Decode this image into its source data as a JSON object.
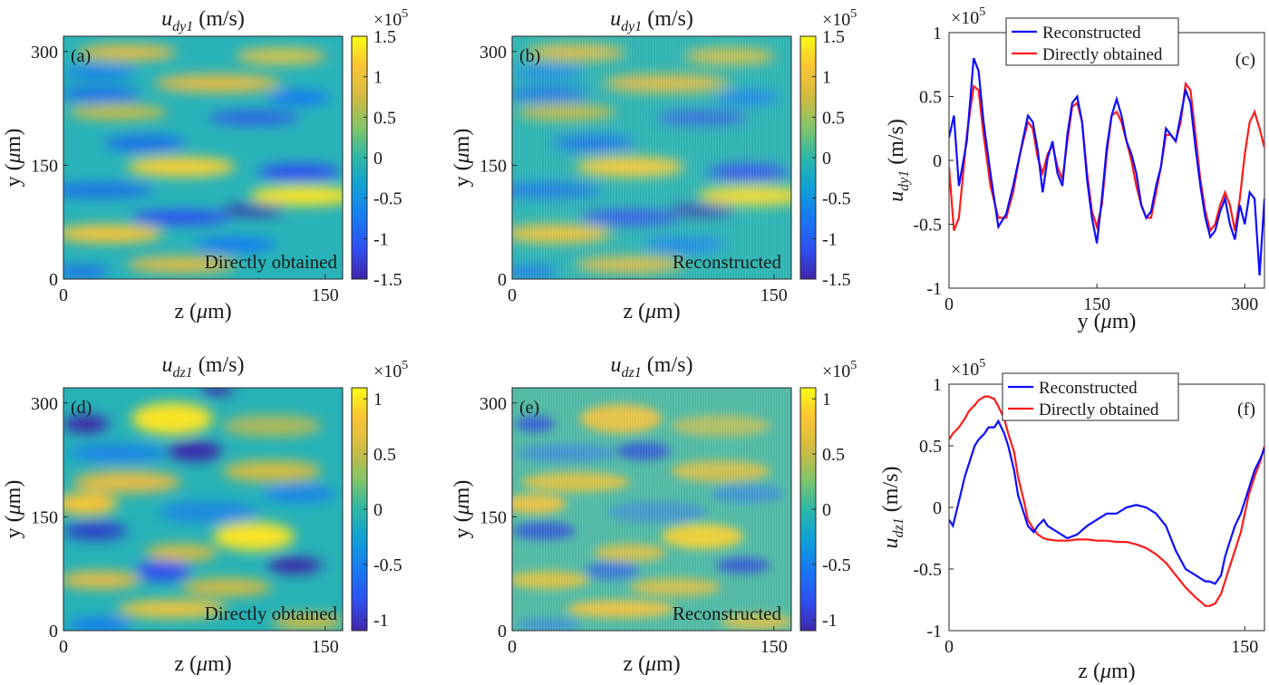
{
  "colors": {
    "blue": "#0d0dff",
    "red": "#ff1a1a",
    "colormap": "parula"
  },
  "heatmaps": [
    {
      "id": "a",
      "tag": "(a)",
      "title_main": "u",
      "title_sub": "dy1",
      "title_unit": "(m/s)",
      "overlay": "Directly obtained",
      "cb_exp_base": "×10",
      "cb_exp_pow": "5",
      "cb_ticks": [
        "1.5",
        "1",
        "0.5",
        "0",
        "-0.5",
        "-1",
        "-1.5"
      ],
      "x_ticks": [
        "0",
        "150"
      ],
      "y_ticks": [
        "300",
        "150",
        "0"
      ],
      "xlabel_pre": "z (",
      "xlabel_mu": "μ",
      "xlabel_post": "m)",
      "ylabel_pre": "y (",
      "ylabel_mu": "μ",
      "ylabel_post": "m)"
    },
    {
      "id": "b",
      "tag": "(b)",
      "title_main": "u",
      "title_sub": "dy1",
      "title_unit": "(m/s)",
      "overlay": "Reconstructed",
      "cb_exp_base": "×10",
      "cb_exp_pow": "5",
      "cb_ticks": [
        "1.5",
        "1",
        "0.5",
        "0",
        "-0.5",
        "-1",
        "-1.5"
      ],
      "x_ticks": [
        "0",
        "150"
      ],
      "y_ticks": [
        "300",
        "150",
        "0"
      ],
      "xlabel_pre": "z (",
      "xlabel_mu": "μ",
      "xlabel_post": "m)",
      "ylabel_pre": "y (",
      "ylabel_mu": "μ",
      "ylabel_post": "m)"
    },
    {
      "id": "d",
      "tag": "(d)",
      "title_main": "u",
      "title_sub": "dz1",
      "title_unit": "(m/s)",
      "overlay": "Directly obtained",
      "cb_exp_base": "×10",
      "cb_exp_pow": "5",
      "cb_ticks": [
        "1",
        "0.5",
        "0",
        "-0.5",
        "-1"
      ],
      "x_ticks": [
        "0",
        "150"
      ],
      "y_ticks": [
        "300",
        "150",
        "0"
      ],
      "xlabel_pre": "z (",
      "xlabel_mu": "μ",
      "xlabel_post": "m)",
      "ylabel_pre": "y (",
      "ylabel_mu": "μ",
      "ylabel_post": "m)"
    },
    {
      "id": "e",
      "tag": "(e)",
      "title_main": "u",
      "title_sub": "dz1",
      "title_unit": "(m/s)",
      "overlay": "Reconstructed",
      "cb_exp_base": "×10",
      "cb_exp_pow": "5",
      "cb_ticks": [
        "1",
        "0.5",
        "0",
        "-0.5",
        "-1"
      ],
      "x_ticks": [
        "0",
        "150"
      ],
      "y_ticks": [
        "300",
        "150",
        "0"
      ],
      "xlabel_pre": "z (",
      "xlabel_mu": "μ",
      "xlabel_post": "m)",
      "ylabel_pre": "y (",
      "ylabel_mu": "μ",
      "ylabel_post": "m)"
    }
  ],
  "lineplots": [
    {
      "id": "c",
      "tag": "(c)",
      "exp_base": "×10",
      "exp_pow": "5",
      "y_ticks": [
        "1",
        "0.5",
        "0",
        "-0.5",
        "-1"
      ],
      "x_ticks": [
        "0",
        "150",
        "300"
      ],
      "xlabel_pre": "y (",
      "xlabel_mu": "μ",
      "xlabel_post": "m)",
      "ylabel_main": "u",
      "ylabel_sub": "dy1",
      "ylabel_unit": " (m/s)",
      "legend": [
        "Reconstructed",
        "Directly obtained"
      ]
    },
    {
      "id": "f",
      "tag": "(f)",
      "exp_base": "×10",
      "exp_pow": "5",
      "y_ticks": [
        "1",
        "0.5",
        "0",
        "-0.5",
        "-1"
      ],
      "x_ticks": [
        "0",
        "150"
      ],
      "xlabel_pre": "z (",
      "xlabel_mu": "μ",
      "xlabel_post": "m)",
      "ylabel_main": "u",
      "ylabel_sub": "dz1",
      "ylabel_unit": " (m/s)",
      "legend": [
        "Reconstructed",
        "Directly obtained"
      ]
    }
  ],
  "chart_data": [
    {
      "type": "heatmap",
      "panel": "(a)",
      "title": "u_dy1 (m/s)",
      "xlabel": "z (μm)",
      "ylabel": "y (μm)",
      "xlim": [
        0,
        160
      ],
      "ylim": [
        0,
        320
      ],
      "clim": [
        -150000,
        150000
      ],
      "colormap": "parula",
      "colorbar_ticks": [
        -1.5,
        -1,
        -0.5,
        0,
        0.5,
        1,
        1.5
      ],
      "colorbar_scale": "×10^5"
    },
    {
      "type": "heatmap",
      "panel": "(b)",
      "title": "u_dy1 (m/s)",
      "xlabel": "z (μm)",
      "ylabel": "y (μm)",
      "xlim": [
        0,
        160
      ],
      "ylim": [
        0,
        320
      ],
      "clim": [
        -150000,
        150000
      ],
      "colormap": "parula",
      "colorbar_ticks": [
        -1.5,
        -1,
        -0.5,
        0,
        0.5,
        1,
        1.5
      ],
      "colorbar_scale": "×10^5"
    },
    {
      "type": "line",
      "panel": "(c)",
      "xlabel": "y (μm)",
      "ylabel": "u_dy1 (m/s)",
      "xlim": [
        0,
        320
      ],
      "ylim": [
        -1,
        1
      ],
      "y_scale": "×10^5",
      "grid": false,
      "legend_position": "top",
      "x": [
        0,
        5,
        10,
        18,
        25,
        30,
        35,
        42,
        50,
        58,
        65,
        72,
        80,
        85,
        90,
        95,
        100,
        105,
        110,
        115,
        120,
        125,
        130,
        135,
        140,
        145,
        150,
        155,
        160,
        165,
        170,
        175,
        180,
        185,
        190,
        195,
        200,
        205,
        210,
        215,
        220,
        225,
        230,
        235,
        240,
        245,
        250,
        255,
        260,
        265,
        270,
        275,
        280,
        285,
        290,
        295,
        300,
        305,
        310,
        315,
        320
      ],
      "series": [
        {
          "name": "Reconstructed",
          "values": [
            0.18,
            0.35,
            -0.2,
            0.15,
            0.8,
            0.7,
            0.3,
            -0.1,
            -0.52,
            -0.42,
            -0.2,
            0.05,
            0.35,
            0.3,
            0.08,
            -0.25,
            0.02,
            0.15,
            -0.1,
            -0.2,
            0.2,
            0.45,
            0.5,
            0.3,
            -0.15,
            -0.45,
            -0.65,
            -0.3,
            0.1,
            0.35,
            0.48,
            0.35,
            0.15,
            0.05,
            -0.1,
            -0.35,
            -0.45,
            -0.4,
            -0.2,
            -0.05,
            0.25,
            0.2,
            0.15,
            0.35,
            0.55,
            0.45,
            0.1,
            -0.2,
            -0.45,
            -0.6,
            -0.55,
            -0.4,
            -0.3,
            -0.5,
            -0.62,
            -0.35,
            -0.5,
            -0.25,
            -0.3,
            -0.9,
            -0.3
          ]
        },
        {
          "name": "Directly obtained",
          "values": [
            -0.05,
            -0.55,
            -0.45,
            0.2,
            0.58,
            0.55,
            0.2,
            -0.2,
            -0.45,
            -0.45,
            -0.25,
            0.05,
            0.3,
            0.25,
            0.02,
            -0.1,
            0.05,
            0.12,
            -0.05,
            -0.15,
            0.15,
            0.42,
            0.45,
            0.3,
            -0.1,
            -0.4,
            -0.52,
            -0.35,
            0.05,
            0.35,
            0.38,
            0.3,
            0.15,
            0.0,
            -0.2,
            -0.35,
            -0.45,
            -0.45,
            -0.25,
            -0.05,
            0.2,
            0.2,
            0.15,
            0.3,
            0.6,
            0.55,
            0.2,
            -0.15,
            -0.4,
            -0.55,
            -0.5,
            -0.35,
            -0.25,
            -0.35,
            -0.55,
            -0.3,
            0.05,
            0.3,
            0.38,
            0.25,
            0.1
          ]
        }
      ]
    },
    {
      "type": "heatmap",
      "panel": "(d)",
      "title": "u_dz1 (m/s)",
      "xlabel": "z (μm)",
      "ylabel": "y (μm)",
      "xlim": [
        0,
        160
      ],
      "ylim": [
        0,
        320
      ],
      "clim": [
        -110000,
        110000
      ],
      "colormap": "parula",
      "colorbar_ticks": [
        -1,
        -0.5,
        0,
        0.5,
        1
      ],
      "colorbar_scale": "×10^5"
    },
    {
      "type": "heatmap",
      "panel": "(e)",
      "title": "u_dz1 (m/s)",
      "xlabel": "z (μm)",
      "ylabel": "y (μm)",
      "xlim": [
        0,
        160
      ],
      "ylim": [
        0,
        320
      ],
      "clim": [
        -110000,
        110000
      ],
      "colormap": "parula",
      "colorbar_ticks": [
        -1,
        -0.5,
        0,
        0.5,
        1
      ],
      "colorbar_scale": "×10^5"
    },
    {
      "type": "line",
      "panel": "(f)",
      "xlabel": "z (μm)",
      "ylabel": "u_dz1 (m/s)",
      "xlim": [
        0,
        160
      ],
      "ylim": [
        -1,
        1
      ],
      "y_scale": "×10^5",
      "grid": false,
      "legend_position": "top",
      "x": [
        0,
        2,
        5,
        8,
        10,
        13,
        15,
        18,
        20,
        23,
        25,
        28,
        30,
        33,
        35,
        38,
        40,
        43,
        45,
        48,
        50,
        55,
        60,
        65,
        70,
        75,
        80,
        85,
        90,
        95,
        100,
        105,
        110,
        115,
        120,
        125,
        128,
        130,
        132,
        135,
        138,
        140,
        142,
        145,
        148,
        150,
        152,
        155,
        158,
        160
      ],
      "series": [
        {
          "name": "Reconstructed",
          "values": [
            -0.1,
            -0.15,
            0.05,
            0.25,
            0.35,
            0.5,
            0.55,
            0.6,
            0.65,
            0.65,
            0.7,
            0.6,
            0.5,
            0.3,
            0.1,
            -0.05,
            -0.15,
            -0.2,
            -0.15,
            -0.1,
            -0.15,
            -0.2,
            -0.25,
            -0.22,
            -0.15,
            -0.1,
            -0.05,
            -0.05,
            0.0,
            0.02,
            0.0,
            -0.05,
            -0.15,
            -0.35,
            -0.5,
            -0.55,
            -0.58,
            -0.6,
            -0.6,
            -0.62,
            -0.55,
            -0.4,
            -0.3,
            -0.15,
            -0.05,
            0.05,
            0.15,
            0.3,
            0.4,
            0.48
          ]
        },
        {
          "name": "Directly obtained",
          "values": [
            0.55,
            0.6,
            0.65,
            0.72,
            0.78,
            0.83,
            0.87,
            0.9,
            0.9,
            0.88,
            0.82,
            0.72,
            0.6,
            0.45,
            0.25,
            0.05,
            -0.1,
            -0.18,
            -0.22,
            -0.25,
            -0.26,
            -0.27,
            -0.27,
            -0.26,
            -0.26,
            -0.27,
            -0.27,
            -0.28,
            -0.28,
            -0.3,
            -0.33,
            -0.38,
            -0.45,
            -0.55,
            -0.65,
            -0.73,
            -0.77,
            -0.8,
            -0.8,
            -0.78,
            -0.7,
            -0.6,
            -0.5,
            -0.35,
            -0.2,
            -0.05,
            0.1,
            0.25,
            0.38,
            0.5
          ]
        }
      ]
    }
  ]
}
